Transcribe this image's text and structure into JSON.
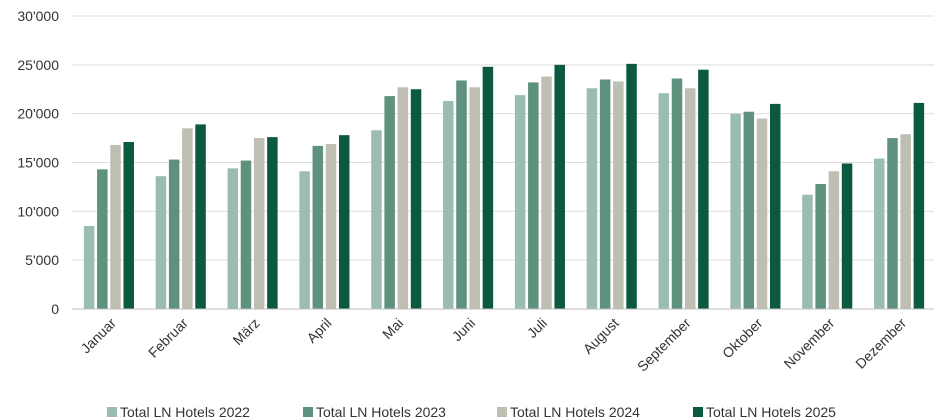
{
  "chart_data": {
    "type": "bar",
    "title": "",
    "xlabel": "",
    "ylabel": "",
    "ylim": [
      0,
      30000
    ],
    "yticks": [
      0,
      5000,
      10000,
      15000,
      20000,
      25000,
      30000
    ],
    "ytick_labels": [
      "0",
      "5'000",
      "10'000",
      "15'000",
      "20'000",
      "25'000",
      "30'000"
    ],
    "grid": true,
    "legend_position": "bottom",
    "categories": [
      "Januar",
      "Februar",
      "März",
      "April",
      "Mai",
      "Juni",
      "Juli",
      "August",
      "September",
      "Oktober",
      "November",
      "Dezember"
    ],
    "series": [
      {
        "name": "Total LN Hotels 2022",
        "color": "#9bbdb0",
        "values": [
          8500,
          13600,
          14400,
          14100,
          18300,
          21300,
          21900,
          22600,
          22100,
          20000,
          11700,
          15400
        ]
      },
      {
        "name": "Total LN Hotels 2023",
        "color": "#5e917e",
        "values": [
          14300,
          15300,
          15200,
          16700,
          21800,
          23400,
          23200,
          23500,
          23600,
          20200,
          12800,
          17500
        ]
      },
      {
        "name": "Total LN Hotels 2024",
        "color": "#bebeb3",
        "values": [
          16800,
          18500,
          17500,
          16900,
          22700,
          22700,
          23800,
          23300,
          22600,
          19500,
          14100,
          17900
        ]
      },
      {
        "name": "Total LN Hotels 2025",
        "color": "#0b5a40",
        "values": [
          17100,
          18900,
          17600,
          17800,
          22500,
          24800,
          25000,
          25100,
          24500,
          21000,
          14900,
          21100
        ]
      }
    ]
  }
}
